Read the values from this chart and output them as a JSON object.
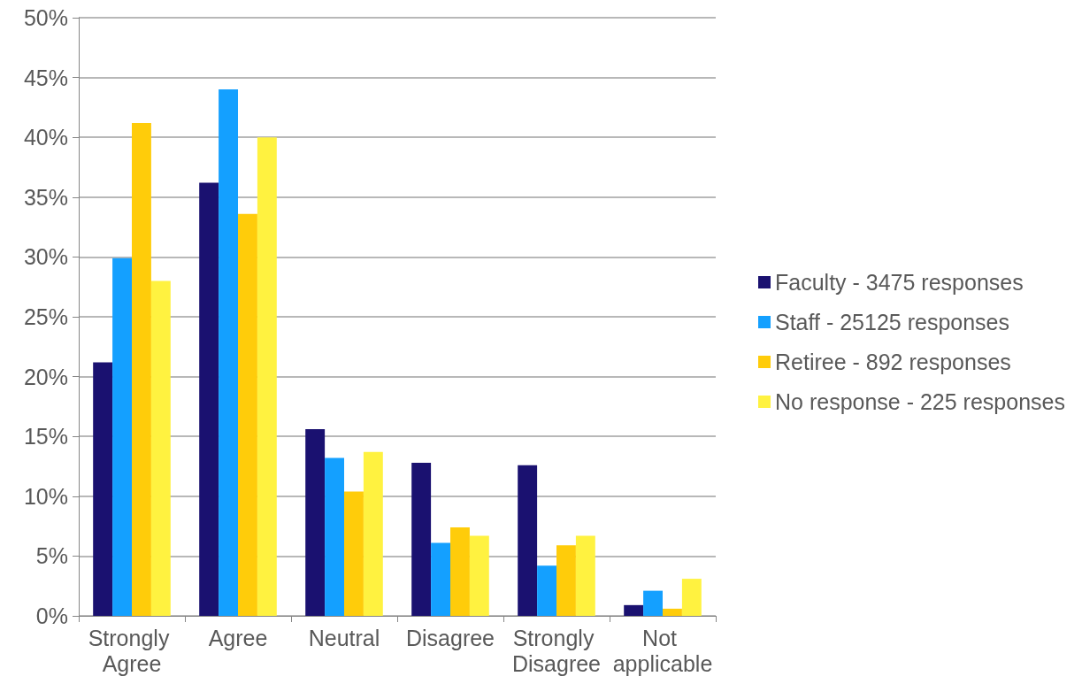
{
  "chart_data": {
    "type": "bar",
    "categories": [
      "Strongly Agree",
      "Agree",
      "Neutral",
      "Disagree",
      "Strongly Disagree",
      "Not applicable"
    ],
    "series": [
      {
        "name": "Faculty - 3475 responses",
        "color": "#1a1170",
        "values": [
          21.2,
          36.2,
          15.6,
          12.8,
          12.6,
          0.9
        ]
      },
      {
        "name": "Staff - 25125 responses",
        "color": "#14a0ff",
        "values": [
          29.9,
          44.0,
          13.2,
          6.1,
          4.2,
          2.1
        ]
      },
      {
        "name": "Retiree - 892 responses",
        "color": "#ffcc0a",
        "values": [
          41.2,
          33.6,
          10.4,
          7.4,
          5.9,
          0.6
        ]
      },
      {
        "name": "No response - 225 responses",
        "color": "#fff240",
        "values": [
          28.0,
          40.0,
          13.7,
          6.7,
          6.7,
          3.1
        ]
      }
    ],
    "ylim": [
      0,
      50
    ],
    "yticks": [
      {
        "value": 0,
        "label": "0%"
      },
      {
        "value": 5,
        "label": "5%"
      },
      {
        "value": 10,
        "label": "10%"
      },
      {
        "value": 15,
        "label": "15%"
      },
      {
        "value": 20,
        "label": "20%"
      },
      {
        "value": 25,
        "label": "25%"
      },
      {
        "value": 30,
        "label": "30%"
      },
      {
        "value": 35,
        "label": "35%"
      },
      {
        "value": 40,
        "label": "40%"
      },
      {
        "value": 45,
        "label": "45%"
      },
      {
        "value": 50,
        "label": "50%"
      }
    ],
    "grid": "y",
    "legend": "right"
  }
}
